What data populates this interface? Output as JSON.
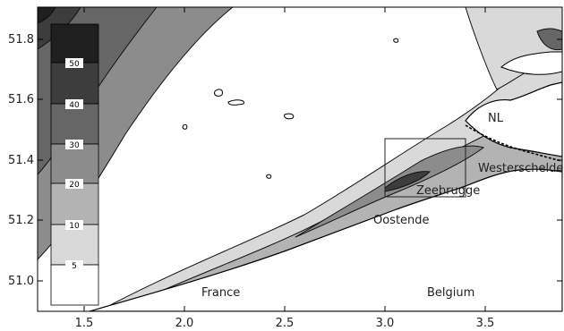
{
  "axes": {
    "x_ticks": [
      "1.5",
      "2.0",
      "2.5",
      "3.0",
      "3.5"
    ],
    "y_ticks": [
      "51.8",
      "51.6",
      "51.4",
      "51.2",
      "51.0"
    ]
  },
  "places": {
    "nl": "NL",
    "westerschelde": "Westerschelde",
    "zeebrugge": "Zeebrugge",
    "oostende": "Oostende",
    "france": "France",
    "belgium": "Belgium"
  },
  "legend": {
    "levels": [
      "50",
      "40",
      "30",
      "20",
      "10",
      "5"
    ],
    "colors": [
      "#1f1f1f",
      "#3d3d3d",
      "#666666",
      "#8c8c8c",
      "#b3b3b3",
      "#d9d9d9",
      "#ffffff"
    ]
  }
}
